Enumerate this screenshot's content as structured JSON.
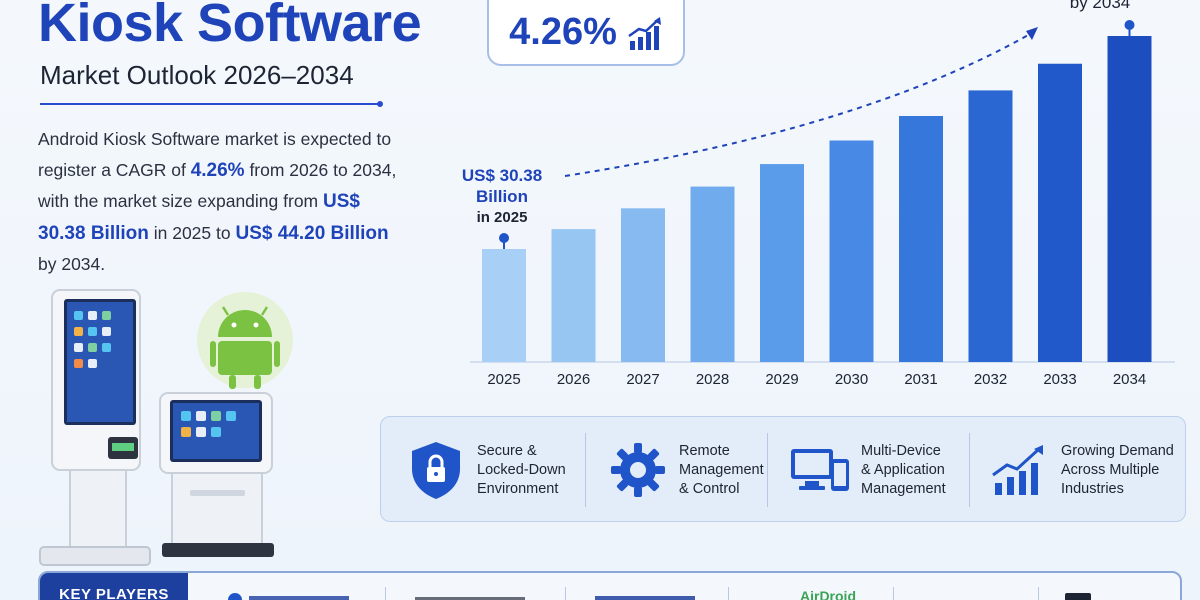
{
  "header": {
    "title": "Kiosk Software",
    "subtitle": "Market Outlook 2026–2034"
  },
  "description": {
    "p1": "Android Kiosk Software market is expected to register a CAGR of ",
    "cagr": "4.26%",
    "p2": " from 2026 to 2034, with the market size expanding from ",
    "start_value": "US$ 30.38 Billion",
    "p3": " in 2025 to ",
    "end_value": "US$ 44.20 Billion",
    "p4": " by 2034."
  },
  "cagr_badge": {
    "value": "4.26%",
    "icon": "rising-bar-chart-icon"
  },
  "callouts": {
    "start_line1": "US$ 30.38",
    "start_line2": "Billion",
    "start_line3": "in 2025",
    "end_label": "by 2034"
  },
  "chart_data": {
    "type": "bar",
    "categories": [
      "2025",
      "2026",
      "2027",
      "2028",
      "2029",
      "2030",
      "2031",
      "2032",
      "2033",
      "2034"
    ],
    "values": [
      30.38,
      31.67,
      33.02,
      34.43,
      35.89,
      37.42,
      39.01,
      40.67,
      42.4,
      44.2
    ],
    "xlabel": "",
    "ylabel": "",
    "ylim": [
      0,
      46
    ],
    "grid": false,
    "colors": [
      "#a8d0f6",
      "#98c6f3",
      "#86baf0",
      "#70aced",
      "#5a9cea",
      "#4789e4",
      "#3677dc",
      "#2a67d3",
      "#2159ca",
      "#1c4ec0"
    ]
  },
  "features": [
    {
      "label": "Secure &\nLocked-Down\nEnvironment",
      "icon": "shield-lock-icon"
    },
    {
      "label": "Remote\nManagement\n& Control",
      "icon": "gear-icon"
    },
    {
      "label": "Multi-Device\n& Application\nManagement",
      "icon": "devices-icon"
    },
    {
      "label": "Growing Demand\nAcross Multiple\nIndustries",
      "icon": "growth-chart-icon"
    }
  ],
  "key_players": {
    "label": "KEY PLAYERS",
    "visible_logo_text": "AirDroid"
  },
  "colors": {
    "brand_blue": "#1f43b8",
    "navy": "#1d3f9e",
    "android_green": "#7cc242"
  }
}
